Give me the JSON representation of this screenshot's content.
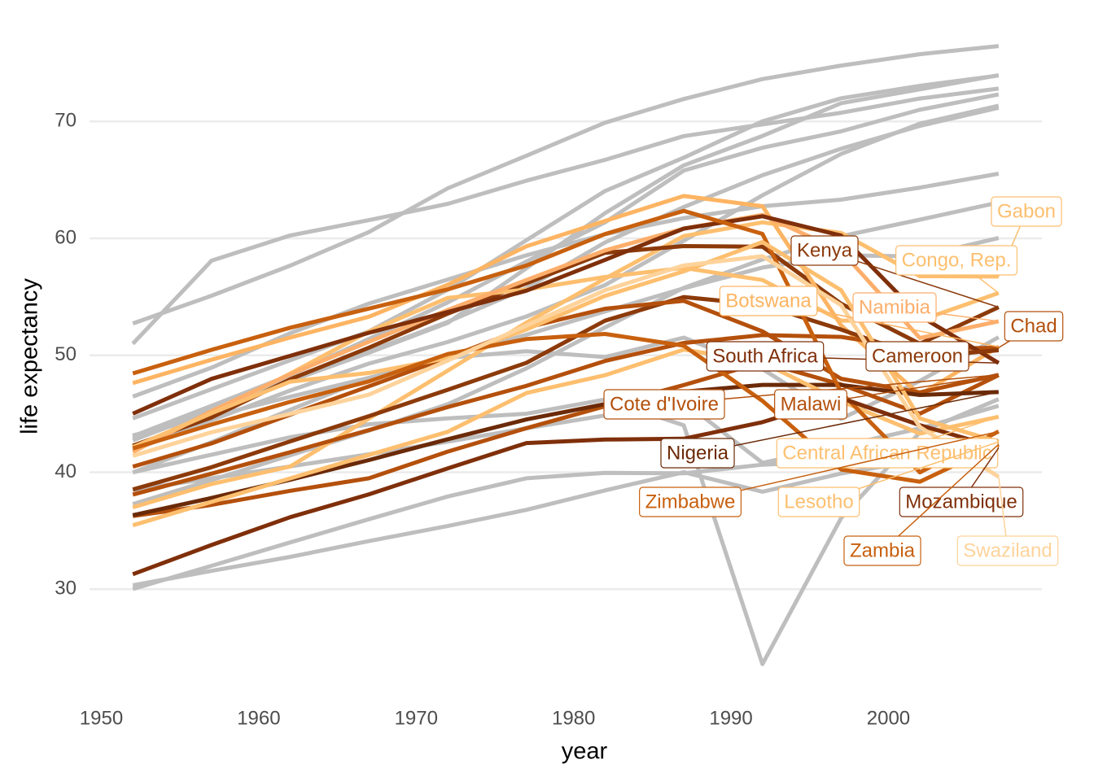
{
  "chart_data": {
    "type": "line",
    "x_label": "year",
    "y_label": "life expectancy",
    "x": [
      1952,
      1957,
      1962,
      1967,
      1972,
      1977,
      1982,
      1987,
      1992,
      1997,
      2002,
      2007
    ],
    "xlim": [
      1949.25,
      2009.75
    ],
    "xticks": [
      1950,
      1960,
      1970,
      1980,
      1990,
      2000
    ],
    "ylim": [
      21.6,
      76.9
    ],
    "yticks": [
      30,
      40,
      50,
      60,
      70
    ],
    "grid": true,
    "series": [
      {
        "color": "#bebebe",
        "values": [
          40,
          41.5,
          43,
          44.1,
          44.6,
          45,
          46.218,
          44.02,
          23.599,
          36.087,
          43.413,
          46.242
        ]
      },
      {
        "color": "#bebebe",
        "values": [
          50.986,
          58.089,
          60.246,
          61.557,
          62.944,
          64.93,
          66.711,
          68.74,
          69.745,
          70.736,
          71.954,
          72.801
        ]
      },
      {
        "color": "#bebebe",
        "values": [
          52.724,
          55.09,
          57.666,
          60.542,
          64.274,
          67.064,
          69.885,
          71.913,
          73.615,
          74.772,
          75.744,
          76.442
        ]
      },
      {
        "color": "#bebebe",
        "values": [
          44.6,
          47.1,
          49.579,
          52.053,
          55.602,
          59.837,
          64.048,
          66.894,
          70.001,
          71.973,
          73.042,
          73.923
        ]
      },
      {
        "color": "#bebebe",
        "values": [
          42.723,
          45.289,
          47.808,
          50.227,
          52.773,
          57.442,
          62.155,
          66.234,
          68.755,
          71.555,
          72.737,
          73.952
        ]
      },
      {
        "color": "#bebebe",
        "values": [
          43.077,
          45.685,
          48.303,
          51.407,
          54.518,
          58.014,
          61.368,
          65.799,
          67.744,
          69.152,
          70.994,
          72.301
        ]
      },
      {
        "color": "#bebebe",
        "values": [
          41.893,
          44.444,
          46.992,
          49.293,
          51.137,
          53.319,
          56.006,
          59.797,
          63.674,
          67.217,
          69.806,
          71.338
        ]
      },
      {
        "color": "#bebebe",
        "values": [
          42.873,
          45.423,
          47.924,
          50.335,
          52.862,
          55.73,
          59.65,
          62.677,
          65.393,
          67.66,
          69.615,
          71.164
        ]
      },
      {
        "color": "#bebebe",
        "values": [
          46.471,
          48.945,
          51.893,
          54.425,
          56.48,
          58.55,
          60.351,
          61.728,
          62.742,
          63.306,
          64.337,
          65.528
        ]
      },
      {
        "color": "#bebebe",
        "values": [
          30.331,
          31.57,
          32.767,
          34.113,
          35.4,
          36.788,
          38.445,
          40.006,
          38.333,
          39.897,
          41.012,
          42.568
        ]
      },
      {
        "color": "#bebebe",
        "values": [
          30.015,
          31.999,
          34,
          35.985,
          37.928,
          39.483,
          39.942,
          39.906,
          40.647,
          40.963,
          41.003,
          42.731
        ]
      },
      {
        "color": "#bebebe",
        "values": [
          43.149,
          44.779,
          46.452,
          48.072,
          49.875,
          51.756,
          53.744,
          55.729,
          57.501,
          58.556,
          58.453,
          60.022
        ]
      },
      {
        "color": "#bebebe",
        "values": [
          37.278,
          39.329,
          41.454,
          43.563,
          45.815,
          48.879,
          52.379,
          55.769,
          58.196,
          60.187,
          61.6,
          63.062
        ]
      },
      {
        "color": "#bebebe",
        "values": [
          39.978,
          42.571,
          45.344,
          48.051,
          49.796,
          50.35,
          49.849,
          51.509,
          48.825,
          44.578,
          47.813,
          51.542
        ]
      },
      {
        "color": "#bebebe",
        "values": [
          38.48,
          39.486,
          40.502,
          41.536,
          42.614,
          43.764,
          44.852,
          46.027,
          40.802,
          42.221,
          43.753,
          45.678
        ]
      },
      {
        "name": "Gabon",
        "color": "#fdbf6f",
        "values": [
          37.003,
          38.999,
          40.489,
          44.598,
          48.69,
          52.79,
          56.564,
          60.19,
          61.366,
          60.461,
          56.761,
          56.735
        ]
      },
      {
        "name": "Kenya",
        "color": "#8c3a0a",
        "values": [
          42.27,
          44.686,
          47.949,
          50.654,
          53.559,
          56.155,
          58.766,
          59.339,
          59.285,
          54.407,
          50.992,
          54.11
        ]
      },
      {
        "name": "Congo, Rep.",
        "color": "#fdbf6f",
        "values": [
          42.111,
          45.053,
          48.435,
          52.04,
          54.907,
          55.625,
          56.695,
          57.47,
          56.433,
          52.962,
          52.97,
          55.322
        ]
      },
      {
        "name": "Botswana",
        "color": "#fdb462",
        "values": [
          47.622,
          49.618,
          51.52,
          53.298,
          56.024,
          59.319,
          61.484,
          63.622,
          62.745,
          52.556,
          46.634,
          50.728
        ]
      },
      {
        "name": "Namibia",
        "color": "#fdae6b",
        "values": [
          41.725,
          45.226,
          48.386,
          51.159,
          53.867,
          56.437,
          58.968,
          60.835,
          61.999,
          58.909,
          51.479,
          52.906
        ]
      },
      {
        "name": "Chad",
        "color": "#b4500c",
        "values": [
          38.092,
          39.881,
          41.716,
          43.601,
          45.569,
          47.383,
          49.517,
          51.051,
          51.724,
          51.573,
          50.525,
          50.651
        ]
      },
      {
        "name": "South Africa",
        "color": "#7f2f0a",
        "values": [
          45.009,
          47.985,
          49.951,
          51.927,
          53.696,
          55.527,
          58.161,
          60.834,
          61.888,
          60.236,
          53.365,
          49.339
        ]
      },
      {
        "name": "Cameroon",
        "color": "#8c3a0a",
        "values": [
          38.523,
          40.428,
          42.643,
          44.799,
          47.049,
          49.355,
          52.961,
          54.985,
          54.314,
          52.199,
          49.856,
          50.43
        ]
      },
      {
        "name": "Cote d'Ivoire",
        "color": "#b4500c",
        "values": [
          40.477,
          42.469,
          44.93,
          47.35,
          49.801,
          52.374,
          53.983,
          54.655,
          52.044,
          47.991,
          46.832,
          48.328
        ]
      },
      {
        "name": "Malawi",
        "color": "#b4500c",
        "values": [
          36.256,
          37.207,
          38.41,
          39.487,
          41.766,
          43.767,
          45.642,
          47.457,
          49.42,
          47.495,
          45.009,
          48.303
        ]
      },
      {
        "name": "Nigeria",
        "color": "#6b2a08",
        "values": [
          36.324,
          37.802,
          39.36,
          41.04,
          42.821,
          44.514,
          45.826,
          46.886,
          47.472,
          47.464,
          46.608,
          46.859
        ]
      },
      {
        "name": "Central African Republic",
        "color": "#fdbf6f",
        "values": [
          35.463,
          37.464,
          39.475,
          41.478,
          43.457,
          46.775,
          48.295,
          50.485,
          49.396,
          46.066,
          43.308,
          44.741
        ]
      },
      {
        "name": "Zimbabwe",
        "color": "#c8600e",
        "values": [
          48.451,
          50.469,
          52.358,
          53.995,
          55.635,
          57.674,
          60.363,
          62.351,
          60.377,
          46.809,
          39.989,
          43.487
        ]
      },
      {
        "name": "Lesotho",
        "color": "#fdbf6f",
        "values": [
          42.138,
          45.047,
          47.747,
          48.492,
          49.767,
          52.208,
          55.078,
          57.18,
          59.685,
          55.558,
          44.593,
          42.592
        ]
      },
      {
        "name": "Mozambique",
        "color": "#7f2f0a",
        "values": [
          31.286,
          33.779,
          36.161,
          38.113,
          40.328,
          42.495,
          42.795,
          42.861,
          44.284,
          46.344,
          44.026,
          42.082
        ]
      },
      {
        "name": "Zambia",
        "color": "#c8600e",
        "values": [
          42.038,
          44.077,
          46.023,
          47.768,
          50.107,
          51.386,
          51.821,
          50.821,
          46.1,
          40.238,
          39.193,
          42.384
        ]
      },
      {
        "name": "Swaziland",
        "color": "#fed39b",
        "values": [
          41.407,
          43.424,
          44.992,
          46.633,
          49.552,
          52.537,
          55.561,
          57.678,
          58.474,
          54.289,
          43.869,
          39.613
        ]
      }
    ]
  }
}
